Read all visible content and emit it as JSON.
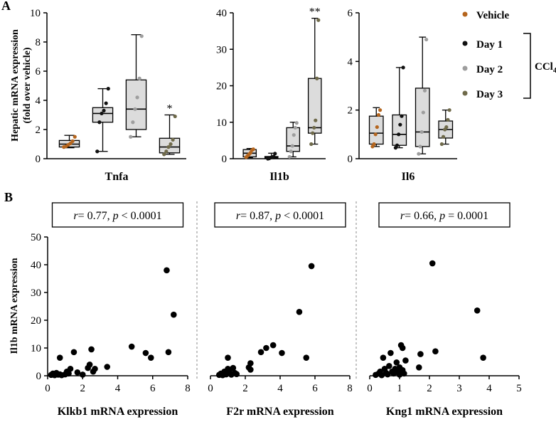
{
  "panel_labels": [
    "A",
    "B"
  ],
  "legend": {
    "items": [
      {
        "label": "Vehicle",
        "color": "#b5651d"
      },
      {
        "label": "Day 1",
        "color": "#111111"
      },
      {
        "label": "Day 2",
        "color": "#9e9e9e"
      },
      {
        "label": "Day 3",
        "color": "#6f6a4a"
      }
    ],
    "bracket_label": "CCl",
    "bracket_sub": "4"
  },
  "chart_data": [
    {
      "type": "box",
      "gene": "Tnfa",
      "ylabel_line1": "Hepatic mRNA expression",
      "ylabel_line2": "(fold over vehicle)",
      "ylim": [
        0,
        10
      ],
      "yticks": [
        "0",
        "2",
        "4",
        "6",
        "8",
        "10"
      ],
      "groups": [
        {
          "name": "Vehicle",
          "whisker": [
            0.75,
            1.6
          ],
          "box": [
            0.8,
            1.25
          ],
          "median": 1.0,
          "points": [
            0.8,
            0.85,
            0.95,
            1.05,
            1.2,
            1.5
          ]
        },
        {
          "name": "Day 1",
          "whisker": [
            0.5,
            4.8
          ],
          "box": [
            2.5,
            3.5
          ],
          "median": 3.1,
          "points": [
            0.5,
            2.5,
            3.1,
            3.3,
            3.8,
            4.8
          ]
        },
        {
          "name": "Day 2",
          "whisker": [
            1.5,
            8.5
          ],
          "box": [
            2.0,
            5.4
          ],
          "median": 3.4,
          "points": [
            1.5,
            2.5,
            3.4,
            4.2,
            5.5,
            8.4
          ]
        },
        {
          "name": "Day 3",
          "whisker": [
            0.3,
            3.0
          ],
          "box": [
            0.4,
            1.4
          ],
          "median": 0.8,
          "points": [
            0.3,
            0.5,
            0.8,
            1.0,
            1.3,
            2.9
          ]
        }
      ],
      "significance": [
        {
          "group": "Day 3",
          "label": "*"
        }
      ]
    },
    {
      "type": "box",
      "gene": "Il1b",
      "ylim": [
        0,
        40
      ],
      "yticks": [
        "0",
        "10",
        "20",
        "30",
        "40"
      ],
      "groups": [
        {
          "name": "Vehicle",
          "whisker": [
            0.3,
            2.8
          ],
          "box": [
            0.5,
            2.5
          ],
          "median": 1.5,
          "points": [
            0.4,
            0.8,
            1.2,
            1.6,
            2.3,
            2.6
          ]
        },
        {
          "name": "Day 1",
          "whisker": [
            0.0,
            1.5
          ],
          "box": [
            0.1,
            0.6
          ],
          "median": 0.3,
          "points": [
            0.0,
            0.1,
            0.3,
            0.4,
            0.6,
            1.4
          ]
        },
        {
          "name": "Day 2",
          "whisker": [
            0.5,
            10.0
          ],
          "box": [
            2.0,
            8.5
          ],
          "median": 3.5,
          "points": [
            0.5,
            2.0,
            3.5,
            6.5,
            8.5,
            9.8
          ]
        },
        {
          "name": "Day 3",
          "whisker": [
            4.0,
            38.5
          ],
          "box": [
            7.0,
            22.0
          ],
          "median": 8.5,
          "points": [
            4.0,
            7.0,
            8.5,
            10.5,
            22.0,
            38.0
          ]
        }
      ],
      "significance": [
        {
          "group": "Day 3",
          "label": "**"
        }
      ]
    },
    {
      "type": "box",
      "gene": "Il6",
      "ylim": [
        0,
        6
      ],
      "yticks": [
        "0",
        "2",
        "4",
        "6"
      ],
      "groups": [
        {
          "name": "Vehicle",
          "whisker": [
            0.5,
            2.1
          ],
          "box": [
            0.6,
            1.75
          ],
          "median": 1.05,
          "points": [
            0.5,
            0.6,
            1.0,
            1.3,
            1.8,
            2.0
          ]
        },
        {
          "name": "Day 1",
          "whisker": [
            0.45,
            3.75
          ],
          "box": [
            0.55,
            1.8
          ],
          "median": 1.0,
          "points": [
            0.45,
            0.55,
            1.0,
            1.4,
            1.75,
            3.75
          ]
        },
        {
          "name": "Day 2",
          "whisker": [
            0.2,
            5.0
          ],
          "box": [
            0.5,
            2.9
          ],
          "median": 1.1,
          "points": [
            0.2,
            0.5,
            1.1,
            1.9,
            2.8,
            4.9
          ]
        },
        {
          "name": "Day 3",
          "whisker": [
            0.6,
            2.0
          ],
          "box": [
            0.85,
            1.55
          ],
          "median": 1.2,
          "points": [
            0.6,
            0.9,
            1.2,
            1.3,
            1.6,
            2.0
          ]
        }
      ],
      "significance": []
    },
    {
      "type": "scatter",
      "ylabel": "Il1b mRNA expression",
      "xlabel": "Klkb1 mRNA expression",
      "stat": {
        "r": "= 0.77, ",
        "p": " < 0.0001"
      },
      "xlim": [
        0,
        8
      ],
      "ylim": [
        0,
        50
      ],
      "xticks": [
        "0",
        "2",
        "4",
        "6",
        "8"
      ],
      "yticks": [
        "0",
        "10",
        "20",
        "30",
        "40",
        "50"
      ],
      "points": [
        [
          0.2,
          0.3
        ],
        [
          0.3,
          0.8
        ],
        [
          0.4,
          0.2
        ],
        [
          0.5,
          1.0
        ],
        [
          0.6,
          0.4
        ],
        [
          0.7,
          0.5
        ],
        [
          0.8,
          0.2
        ],
        [
          0.7,
          6.5
        ],
        [
          1.0,
          0.5
        ],
        [
          1.1,
          1.5
        ],
        [
          1.2,
          0.8
        ],
        [
          1.3,
          2.5
        ],
        [
          1.5,
          8.5
        ],
        [
          1.7,
          1.2
        ],
        [
          2.0,
          0.4
        ],
        [
          2.3,
          2.8
        ],
        [
          2.4,
          4.0
        ],
        [
          2.5,
          9.5
        ],
        [
          2.6,
          1.5
        ],
        [
          2.7,
          2.5
        ],
        [
          3.4,
          3.2
        ],
        [
          4.8,
          10.5
        ],
        [
          5.6,
          8.2
        ],
        [
          5.9,
          6.5
        ],
        [
          6.8,
          38.0
        ],
        [
          6.9,
          8.5
        ],
        [
          7.2,
          22.0
        ]
      ]
    },
    {
      "type": "scatter",
      "xlabel": "F2r mRNA expression",
      "stat": {
        "r": "= 0.87, ",
        "p": " < 0.0001"
      },
      "xlim": [
        0,
        8
      ],
      "ylim": [
        0,
        50
      ],
      "xticks": [
        "0",
        "2",
        "4",
        "6",
        "8"
      ],
      "points": [
        [
          0.5,
          0.3
        ],
        [
          0.6,
          0.8
        ],
        [
          0.7,
          0.2
        ],
        [
          0.8,
          1.5
        ],
        [
          0.9,
          0.5
        ],
        [
          1.0,
          6.5
        ],
        [
          1.0,
          2.5
        ],
        [
          1.1,
          1.2
        ],
        [
          1.2,
          0.4
        ],
        [
          1.3,
          2.8
        ],
        [
          1.4,
          1.0
        ],
        [
          1.5,
          0.6
        ],
        [
          2.2,
          3.0
        ],
        [
          2.3,
          4.5
        ],
        [
          2.3,
          2.2
        ],
        [
          2.9,
          8.5
        ],
        [
          3.2,
          10.0
        ],
        [
          3.6,
          11.0
        ],
        [
          4.1,
          8.2
        ],
        [
          5.1,
          23.0
        ],
        [
          5.5,
          6.5
        ],
        [
          5.8,
          39.5
        ]
      ]
    },
    {
      "type": "scatter",
      "xlabel": "Kng1 mRNA expression",
      "stat": {
        "r": "= 0.66, ",
        "p": " = 0.0001"
      },
      "xlim": [
        0,
        5
      ],
      "ylim": [
        0,
        50
      ],
      "xticks": [
        "0",
        "1",
        "2",
        "3",
        "4",
        "5"
      ],
      "points": [
        [
          0.2,
          0.3
        ],
        [
          0.3,
          0.8
        ],
        [
          0.35,
          1.5
        ],
        [
          0.4,
          0.2
        ],
        [
          0.45,
          6.5
        ],
        [
          0.5,
          2.5
        ],
        [
          0.55,
          1.0
        ],
        [
          0.6,
          0.5
        ],
        [
          0.65,
          3.5
        ],
        [
          0.7,
          8.2
        ],
        [
          0.75,
          1.5
        ],
        [
          0.8,
          0.8
        ],
        [
          0.85,
          2.5
        ],
        [
          0.9,
          4.8
        ],
        [
          0.95,
          1.2
        ],
        [
          1.0,
          0.4
        ],
        [
          1.0,
          3.0
        ],
        [
          1.05,
          11.0
        ],
        [
          1.1,
          10.0
        ],
        [
          1.1,
          2.0
        ],
        [
          1.15,
          0.8
        ],
        [
          1.2,
          5.5
        ],
        [
          1.65,
          3.0
        ],
        [
          1.7,
          7.8
        ],
        [
          2.1,
          40.5
        ],
        [
          2.2,
          8.8
        ],
        [
          3.6,
          23.5
        ],
        [
          3.8,
          6.5
        ]
      ]
    }
  ]
}
